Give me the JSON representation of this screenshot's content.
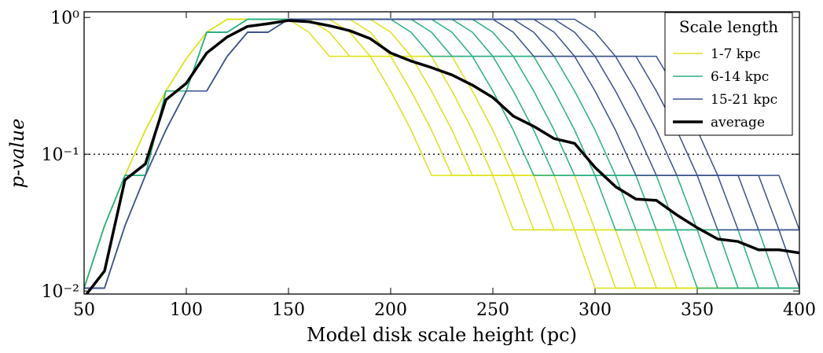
{
  "chart_data": {
    "type": "line",
    "x_label": "Model disk scale height (pc)",
    "y_label": "p-value",
    "log_y": true,
    "xlim": [
      50,
      400
    ],
    "xticks": [
      50,
      100,
      150,
      200,
      250,
      300,
      350,
      400
    ],
    "ylim": [
      0.0095,
      1.1
    ],
    "yticks": [
      {
        "value": 0.01,
        "label": "10⁻²"
      },
      {
        "value": 0.1,
        "label": "10⁻¹"
      },
      {
        "value": 1,
        "label": "10⁰"
      }
    ],
    "hline": 0.1,
    "legend_title": "Scale length",
    "legend_position": "upper right",
    "x": [
      50,
      60,
      70,
      80,
      90,
      100,
      110,
      120,
      130,
      140,
      150,
      160,
      170,
      180,
      190,
      200,
      210,
      220,
      230,
      240,
      250,
      260,
      270,
      280,
      290,
      300,
      310,
      320,
      330,
      340,
      350,
      360,
      370,
      380,
      390,
      400
    ],
    "series": [
      {
        "name": "1-7 kpc",
        "color": "#dde318",
        "width": 1.5,
        "lines": [
          [
            0.0105,
            0.03,
            0.07,
            0.15,
            0.29,
            0.5,
            0.78,
            0.97,
            0.97,
            0.97,
            0.97,
            0.78,
            0.52,
            0.52,
            0.52,
            0.29,
            0.15,
            0.07,
            0.07,
            0.07,
            0.07,
            0.028,
            0.028,
            0.028,
            0.028,
            0.0105,
            0.0105,
            0.0105,
            0.0105,
            0.0105,
            0.0105,
            0.0105,
            0.0105,
            0.0105,
            0.0105,
            0.0105
          ],
          [
            0.0105,
            0.03,
            0.07,
            0.15,
            0.29,
            0.5,
            0.78,
            0.97,
            0.97,
            0.97,
            0.97,
            0.97,
            0.78,
            0.52,
            0.52,
            0.52,
            0.29,
            0.15,
            0.07,
            0.07,
            0.07,
            0.07,
            0.028,
            0.028,
            0.028,
            0.028,
            0.0105,
            0.0105,
            0.0105,
            0.0105,
            0.0105,
            0.0105,
            0.0105,
            0.0105,
            0.0105,
            0.0105
          ],
          [
            0.0105,
            0.03,
            0.07,
            0.15,
            0.29,
            0.5,
            0.78,
            0.97,
            0.97,
            0.97,
            0.97,
            0.97,
            0.97,
            0.78,
            0.52,
            0.52,
            0.52,
            0.29,
            0.15,
            0.07,
            0.07,
            0.07,
            0.07,
            0.028,
            0.028,
            0.028,
            0.028,
            0.0105,
            0.0105,
            0.0105,
            0.0105,
            0.0105,
            0.0105,
            0.0105,
            0.0105,
            0.0105
          ],
          [
            0.0105,
            0.03,
            0.07,
            0.15,
            0.29,
            0.5,
            0.78,
            0.97,
            0.97,
            0.97,
            0.97,
            0.97,
            0.97,
            0.97,
            0.78,
            0.52,
            0.52,
            0.52,
            0.29,
            0.15,
            0.07,
            0.07,
            0.07,
            0.07,
            0.028,
            0.028,
            0.028,
            0.028,
            0.0105,
            0.0105,
            0.0105,
            0.0105,
            0.0105,
            0.0105,
            0.0105,
            0.0105
          ],
          [
            0.0105,
            0.03,
            0.07,
            0.15,
            0.29,
            0.5,
            0.78,
            0.97,
            0.97,
            0.97,
            0.97,
            0.97,
            0.97,
            0.97,
            0.97,
            0.78,
            0.52,
            0.52,
            0.52,
            0.29,
            0.15,
            0.07,
            0.07,
            0.07,
            0.07,
            0.028,
            0.028,
            0.028,
            0.028,
            0.0105,
            0.0105,
            0.0105,
            0.0105,
            0.0105,
            0.0105,
            0.0105
          ]
        ]
      },
      {
        "name": "6-14 kpc",
        "color": "#2ab07f",
        "width": 1.5,
        "lines": [
          [
            0.0105,
            0.03,
            0.07,
            0.07,
            0.29,
            0.29,
            0.78,
            0.78,
            0.97,
            0.97,
            0.97,
            0.97,
            0.97,
            0.97,
            0.97,
            0.97,
            0.78,
            0.52,
            0.52,
            0.52,
            0.29,
            0.15,
            0.07,
            0.07,
            0.07,
            0.07,
            0.028,
            0.028,
            0.028,
            0.028,
            0.0105,
            0.0105,
            0.0105,
            0.0105,
            0.0105,
            0.0105
          ],
          [
            0.0105,
            0.03,
            0.07,
            0.07,
            0.29,
            0.29,
            0.78,
            0.78,
            0.97,
            0.97,
            0.97,
            0.97,
            0.97,
            0.97,
            0.97,
            0.97,
            0.97,
            0.78,
            0.52,
            0.52,
            0.52,
            0.29,
            0.15,
            0.07,
            0.07,
            0.07,
            0.07,
            0.028,
            0.028,
            0.028,
            0.028,
            0.0105,
            0.0105,
            0.0105,
            0.0105,
            0.0105
          ],
          [
            0.0105,
            0.03,
            0.07,
            0.07,
            0.29,
            0.29,
            0.78,
            0.78,
            0.97,
            0.97,
            0.97,
            0.97,
            0.97,
            0.97,
            0.97,
            0.97,
            0.97,
            0.97,
            0.78,
            0.52,
            0.52,
            0.52,
            0.29,
            0.15,
            0.07,
            0.07,
            0.07,
            0.07,
            0.028,
            0.028,
            0.028,
            0.028,
            0.0105,
            0.0105,
            0.0105,
            0.0105
          ],
          [
            0.0105,
            0.03,
            0.07,
            0.07,
            0.29,
            0.29,
            0.78,
            0.78,
            0.97,
            0.97,
            0.97,
            0.97,
            0.97,
            0.97,
            0.97,
            0.97,
            0.97,
            0.97,
            0.97,
            0.78,
            0.52,
            0.52,
            0.52,
            0.29,
            0.15,
            0.07,
            0.07,
            0.07,
            0.07,
            0.028,
            0.028,
            0.028,
            0.028,
            0.0105,
            0.0105,
            0.0105
          ],
          [
            0.0105,
            0.03,
            0.07,
            0.07,
            0.29,
            0.29,
            0.78,
            0.78,
            0.97,
            0.97,
            0.97,
            0.97,
            0.97,
            0.97,
            0.97,
            0.97,
            0.97,
            0.97,
            0.97,
            0.97,
            0.78,
            0.52,
            0.52,
            0.52,
            0.29,
            0.15,
            0.07,
            0.07,
            0.07,
            0.07,
            0.028,
            0.028,
            0.028,
            0.028,
            0.0105,
            0.0105
          ]
        ]
      },
      {
        "name": "15-21 kpc",
        "color": "#3b528b",
        "width": 1.5,
        "lines": [
          [
            0.0105,
            0.0105,
            0.03,
            0.07,
            0.15,
            0.29,
            0.29,
            0.52,
            0.78,
            0.78,
            0.97,
            0.97,
            0.97,
            0.97,
            0.97,
            0.97,
            0.97,
            0.97,
            0.97,
            0.97,
            0.97,
            0.78,
            0.52,
            0.52,
            0.52,
            0.29,
            0.15,
            0.07,
            0.07,
            0.07,
            0.07,
            0.028,
            0.028,
            0.028,
            0.028,
            0.0105
          ],
          [
            0.0105,
            0.0105,
            0.03,
            0.07,
            0.15,
            0.29,
            0.29,
            0.52,
            0.78,
            0.78,
            0.97,
            0.97,
            0.97,
            0.97,
            0.97,
            0.97,
            0.97,
            0.97,
            0.97,
            0.97,
            0.97,
            0.97,
            0.78,
            0.52,
            0.52,
            0.52,
            0.29,
            0.15,
            0.07,
            0.07,
            0.07,
            0.07,
            0.028,
            0.028,
            0.028,
            0.028
          ],
          [
            0.0105,
            0.0105,
            0.03,
            0.07,
            0.15,
            0.29,
            0.29,
            0.52,
            0.78,
            0.78,
            0.97,
            0.97,
            0.97,
            0.97,
            0.97,
            0.97,
            0.97,
            0.97,
            0.97,
            0.97,
            0.97,
            0.97,
            0.97,
            0.78,
            0.52,
            0.52,
            0.52,
            0.29,
            0.15,
            0.07,
            0.07,
            0.07,
            0.07,
            0.028,
            0.028,
            0.028
          ],
          [
            0.0105,
            0.0105,
            0.03,
            0.07,
            0.15,
            0.29,
            0.29,
            0.52,
            0.78,
            0.78,
            0.97,
            0.97,
            0.97,
            0.97,
            0.97,
            0.97,
            0.97,
            0.97,
            0.97,
            0.97,
            0.97,
            0.97,
            0.97,
            0.97,
            0.78,
            0.52,
            0.52,
            0.52,
            0.29,
            0.15,
            0.07,
            0.07,
            0.07,
            0.07,
            0.028,
            0.028
          ],
          [
            0.0105,
            0.0105,
            0.03,
            0.07,
            0.15,
            0.29,
            0.29,
            0.52,
            0.78,
            0.78,
            0.97,
            0.97,
            0.97,
            0.97,
            0.97,
            0.97,
            0.97,
            0.97,
            0.97,
            0.97,
            0.97,
            0.97,
            0.97,
            0.97,
            0.97,
            0.78,
            0.52,
            0.52,
            0.52,
            0.29,
            0.15,
            0.07,
            0.07,
            0.07,
            0.07,
            0.028
          ]
        ]
      },
      {
        "name": "average",
        "color": "#000000",
        "width": 3.5,
        "lines": [
          [
            0.009,
            0.014,
            0.065,
            0.085,
            0.25,
            0.33,
            0.55,
            0.72,
            0.86,
            0.9,
            0.95,
            0.93,
            0.87,
            0.8,
            0.7,
            0.55,
            0.48,
            0.43,
            0.38,
            0.32,
            0.26,
            0.19,
            0.16,
            0.13,
            0.12,
            0.08,
            0.058,
            0.047,
            0.046,
            0.036,
            0.029,
            0.024,
            0.023,
            0.02,
            0.02,
            0.019
          ]
        ]
      }
    ]
  }
}
